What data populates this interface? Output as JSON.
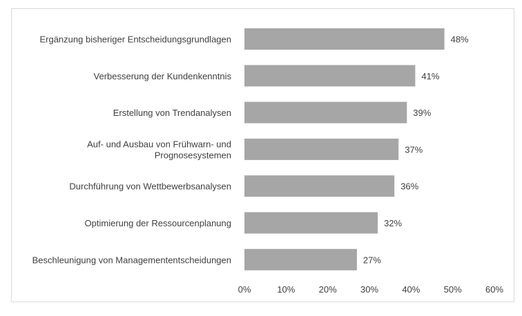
{
  "chart_data": {
    "type": "bar",
    "orientation": "horizontal",
    "title": "",
    "xlabel": "",
    "ylabel": "",
    "categories": [
      [
        "Ergänzung bisheriger Entscheidungsgrundlagen"
      ],
      [
        "Verbesserung der Kundenkenntnis"
      ],
      [
        "Erstellung von Trendanalysen"
      ],
      [
        "Auf- und Ausbau von Frühwarn- und",
        "Prognosesystemen"
      ],
      [
        "Durchführung von Wettbewerbsanalysen"
      ],
      [
        "Optimierung der Ressourcenplanung"
      ],
      [
        "Beschleunigung von Managemententscheidungen"
      ]
    ],
    "values": [
      48,
      41,
      39,
      37,
      36,
      32,
      27
    ],
    "value_labels": [
      "48%",
      "41%",
      "39%",
      "37%",
      "36%",
      "32%",
      "27%"
    ],
    "xlim": [
      0,
      60
    ],
    "x_ticks": [
      0,
      10,
      20,
      30,
      40,
      50,
      60
    ],
    "x_tick_labels": [
      "0%",
      "10%",
      "20%",
      "30%",
      "40%",
      "50%",
      "60%"
    ],
    "grid": false,
    "legend": "none",
    "colors": {
      "bar": "#a6a6a6",
      "text": "#404040",
      "border": "#d9d9d9"
    }
  }
}
